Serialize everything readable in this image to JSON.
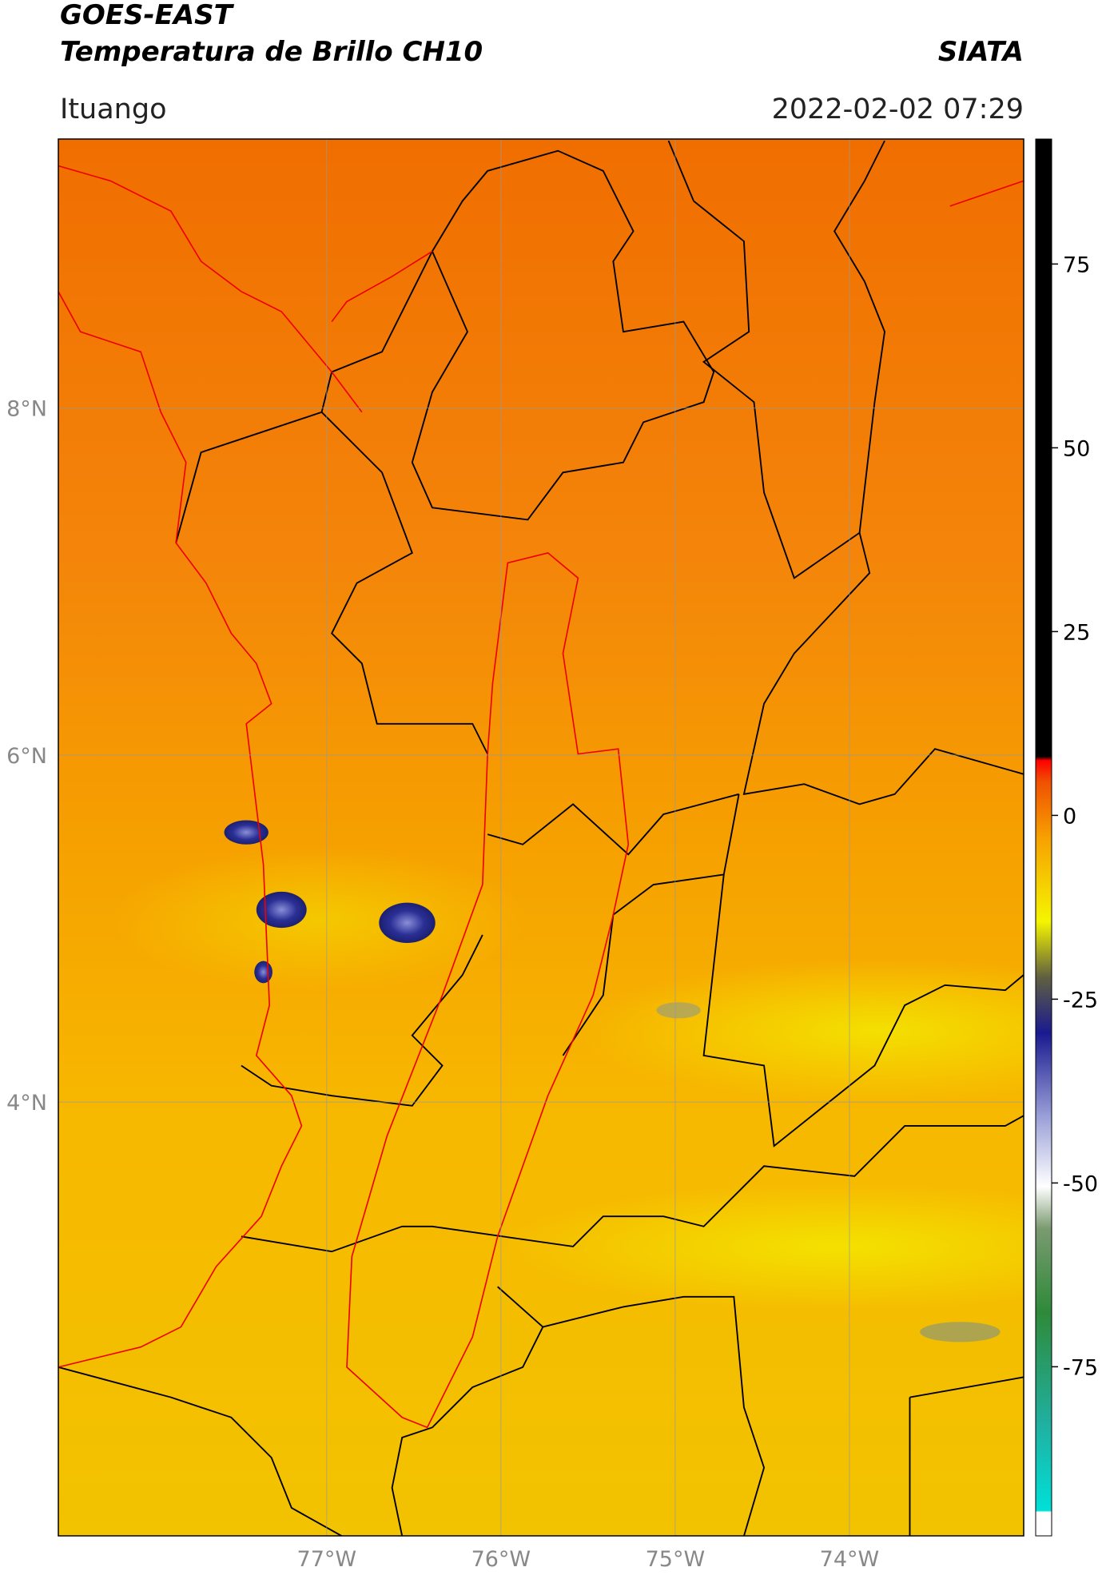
{
  "header": {
    "title": "GOES-EAST",
    "subtitle": "Temperatura de Brillo CH10",
    "brand": "SIATA",
    "location": "Ituango",
    "timestamp": "2022-02-02 07:29"
  },
  "map": {
    "lonlim": [
      -78.54,
      -73.0
    ],
    "latlim": [
      1.5,
      9.55
    ],
    "grid": true,
    "lonticks": [
      {
        "value": -77,
        "label": "77°W"
      },
      {
        "value": -76,
        "label": "76°W"
      },
      {
        "value": -75,
        "label": "75°W"
      },
      {
        "value": -74,
        "label": "74°W"
      }
    ],
    "latticks": [
      {
        "value": 8,
        "label": "8°N"
      },
      {
        "value": 6,
        "label": "6°N"
      },
      {
        "value": 4,
        "label": "4°N"
      }
    ]
  },
  "colorbar": {
    "lim": [
      -98,
      92
    ],
    "ticks": [
      75,
      50,
      25,
      0,
      -25,
      -50,
      -75
    ]
  }
}
